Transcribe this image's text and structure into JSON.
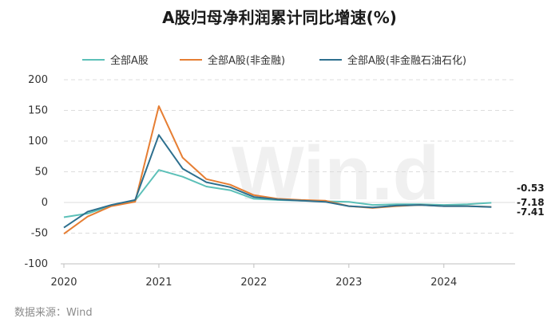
{
  "title": "A股归母净利润累计同比增速(%)",
  "source": "数据来源：Wind",
  "watermark": "Win.d",
  "chart_data": {
    "type": "line",
    "title": "A股归母净利润累计同比增速(%)",
    "xlabel": "",
    "ylabel": "",
    "ylim": [
      -100,
      200
    ],
    "yticks": [
      200,
      150,
      100,
      50,
      0,
      -50,
      -100
    ],
    "xlim": [
      2020.0,
      2024.75
    ],
    "xticks": [
      2020,
      2021,
      2022,
      2023,
      2024
    ],
    "grid": "horizontal",
    "legend_position": "top",
    "x": [
      2020.0,
      2020.25,
      2020.5,
      2020.75,
      2021.0,
      2021.25,
      2021.5,
      2021.75,
      2022.0,
      2022.25,
      2022.5,
      2022.75,
      2023.0,
      2023.25,
      2023.5,
      2023.75,
      2024.0,
      2024.25,
      2024.5
    ],
    "series": [
      {
        "name": "全部A股",
        "color": "#5cc0b8",
        "values": [
          -24,
          -18,
          -5,
          3,
          53,
          42,
          26,
          20,
          6,
          4,
          3,
          2,
          1,
          -4,
          -3,
          -3,
          -4,
          -3,
          -0.53
        ]
      },
      {
        "name": "全部A股(非金融)",
        "color": "#e67e33",
        "values": [
          -51,
          -23,
          -6,
          1,
          157,
          73,
          38,
          29,
          12,
          6,
          4,
          3,
          -6,
          -9,
          -6,
          -4,
          -6,
          -6,
          -7.18
        ]
      },
      {
        "name": "全部A股(非金融石油石化)",
        "color": "#2d6f8e",
        "values": [
          -41,
          -15,
          -4,
          4,
          110,
          55,
          33,
          25,
          9,
          5,
          3,
          1,
          -6,
          -8,
          -5,
          -4,
          -6,
          -6,
          -7.41
        ]
      }
    ],
    "end_labels": [
      "-0.53",
      "-7.18",
      "-7.41"
    ]
  }
}
